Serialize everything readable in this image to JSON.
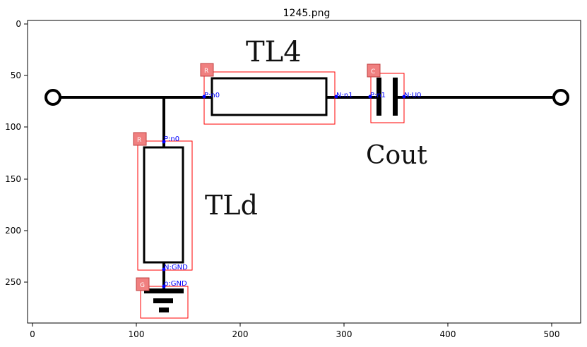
{
  "title": "1245.png",
  "axes": {
    "x_ticks": [
      "0",
      "100",
      "200",
      "300",
      "400",
      "500"
    ],
    "y_ticks": [
      "0",
      "50",
      "100",
      "150",
      "200",
      "250"
    ]
  },
  "circuit_labels": {
    "tl4": "TL4",
    "tld": "TLd",
    "cout": "Cout"
  },
  "components": [
    {
      "id": "tl4-box",
      "badge": "R"
    },
    {
      "id": "cout-box",
      "badge": "C"
    },
    {
      "id": "tld-box",
      "badge": "R"
    },
    {
      "id": "gnd-box",
      "badge": "G"
    }
  ],
  "nodes": {
    "tl4_p": "P:n0",
    "tl4_n": "N:n1",
    "cout_p": "P:n1",
    "cout_n": "N:U0",
    "tld_p": "P:n0",
    "tld_n": "N:GND",
    "gnd_p": "p:GND"
  },
  "colors": {
    "box": "#ff0000",
    "badge_fill": "#f08080",
    "node": "#0000ff",
    "wire": "#000000"
  }
}
